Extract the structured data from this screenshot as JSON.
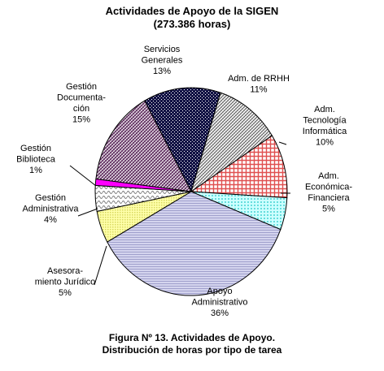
{
  "chart_data": {
    "type": "pie",
    "title": "Actividades de Apoyo de la SIGEN",
    "subtitle": "(273.386 horas)",
    "caption_line1": "Figura Nº 13. Actividades de Apoyo.",
    "caption_line2": "Distribución de horas por tipo de tarea",
    "slices": [
      {
        "label_lines": [
          "Servicios",
          "Generales"
        ],
        "pct_label": "13%",
        "value": 13,
        "color": "#1a1a5a"
      },
      {
        "label_lines": [
          "Adm. de RRHH"
        ],
        "pct_label": "11%",
        "value": 11,
        "color": "#b0b0b0"
      },
      {
        "label_lines": [
          "Adm.",
          "Tecnología",
          "Informática"
        ],
        "pct_label": "10%",
        "value": 10,
        "color": "#e07070"
      },
      {
        "label_lines": [
          "Adm.",
          "Económica-",
          "Financiera"
        ],
        "pct_label": "5%",
        "value": 5,
        "color": "#a8f0f0"
      },
      {
        "label_lines": [
          "Apoyo",
          "Administrativo"
        ],
        "pct_label": "36%",
        "value": 36,
        "color": "#c8c8e6"
      },
      {
        "label_lines": [
          "Asesora-",
          "miento Jurídico"
        ],
        "pct_label": "5%",
        "value": 5,
        "color": "#ecec80"
      },
      {
        "label_lines": [
          "Gestión",
          "Administrativa"
        ],
        "pct_label": "4%",
        "value": 4,
        "color": "#d0d0d0"
      },
      {
        "label_lines": [
          "Gestión",
          "Biblioteca"
        ],
        "pct_label": "1%",
        "value": 1,
        "color": "#ff00ff"
      },
      {
        "label_lines": [
          "Gestión",
          "Documenta-",
          "ción"
        ],
        "pct_label": "15%",
        "value": 15,
        "color": "#6a3a6a"
      }
    ]
  }
}
